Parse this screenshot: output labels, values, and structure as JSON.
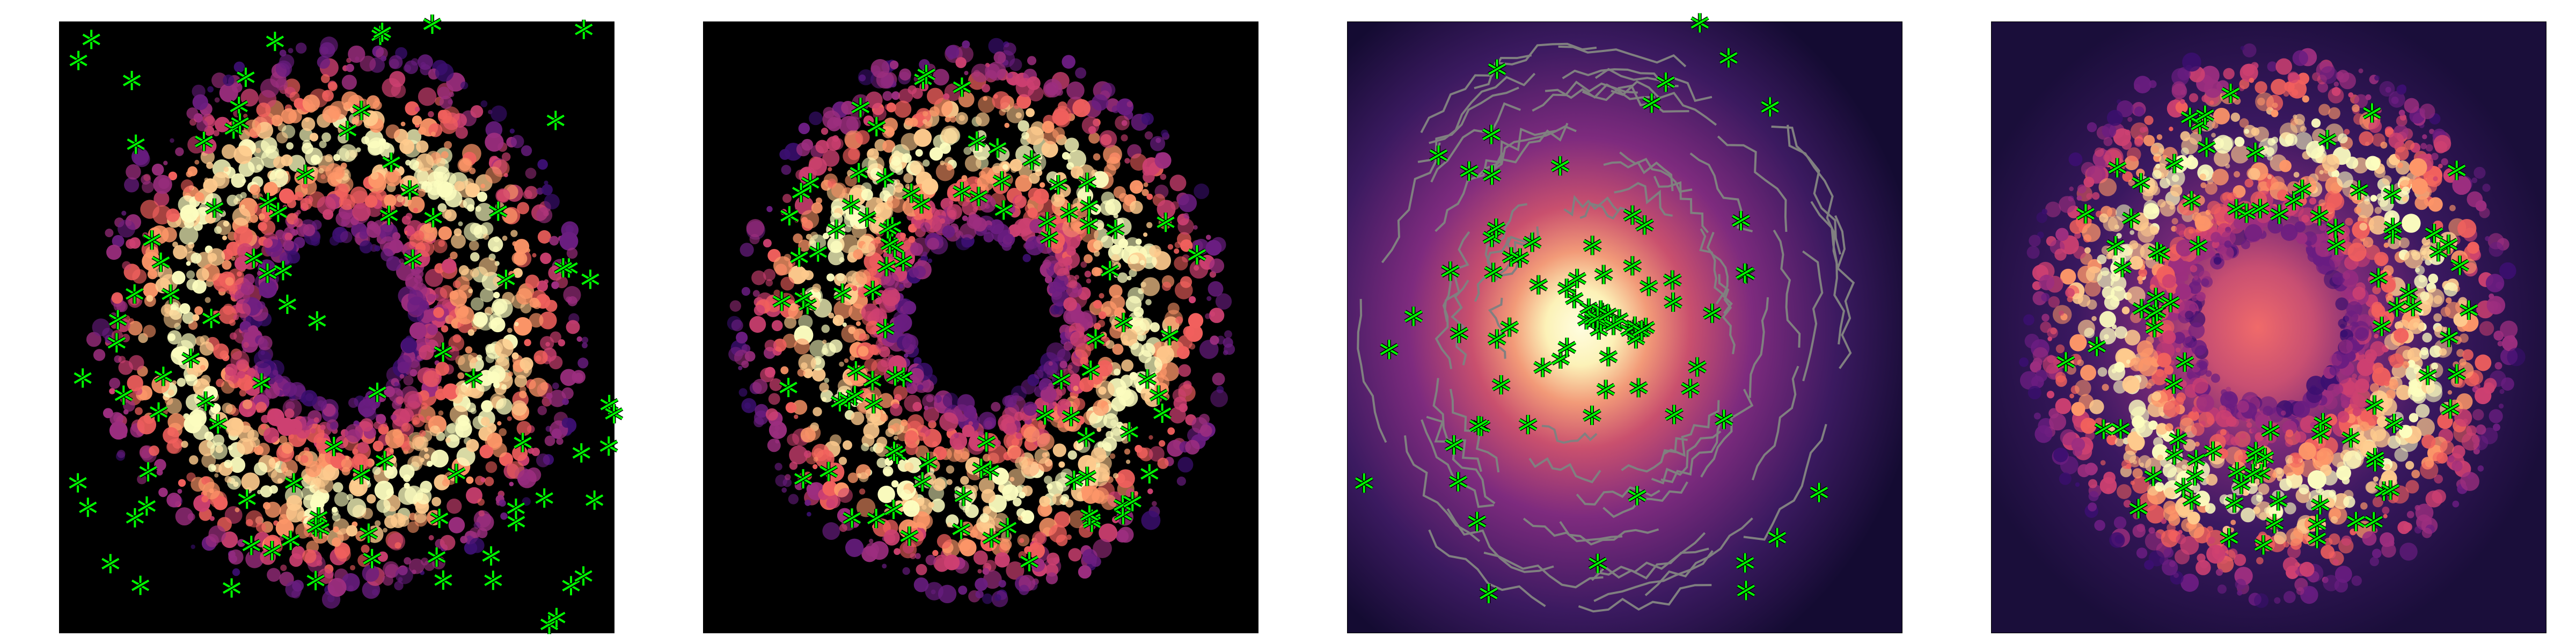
{
  "figure": {
    "panel_count": 4,
    "colormap": "magma",
    "marker_color": "#00ff00",
    "marker_edge_color": "#000000",
    "contour_color": "#808080"
  },
  "panels": [
    {
      "id": "p1",
      "background": "#000000",
      "content": "ring-only",
      "marker_cloud": "wide"
    },
    {
      "id": "p2",
      "background": "#000000",
      "content": "ring-only",
      "marker_cloud": "ring"
    },
    {
      "id": "p3",
      "background": "#2a1548",
      "content": "glow-with-contours",
      "marker_cloud": "center"
    },
    {
      "id": "p4",
      "background": "#1e1140",
      "content": "ring-with-glow",
      "marker_cloud": "ring"
    }
  ]
}
